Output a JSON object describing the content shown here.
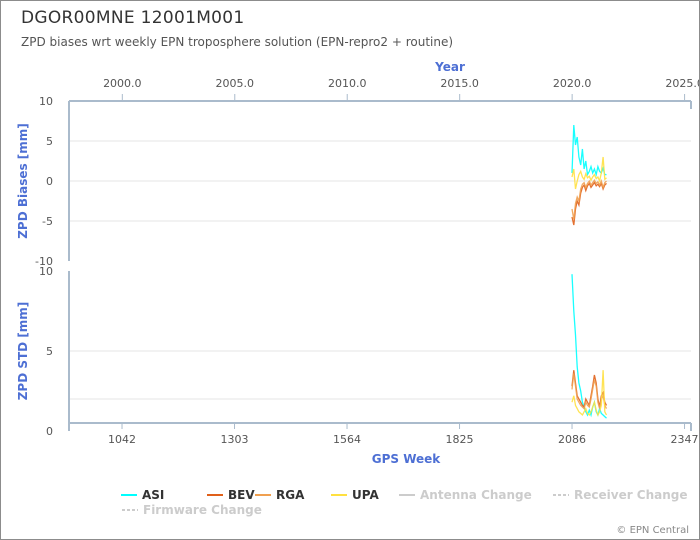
{
  "page": {
    "title": "DGOR00MNE 12001M001",
    "subtitle": "ZPD biases wrt weekly EPN troposphere solution (EPN-repro2 + routine)",
    "credit": "© EPN Central"
  },
  "colors": {
    "ASI": "#00ffff",
    "BEV": "#e0601a",
    "RGA": "#f0a050",
    "UPA": "#ffe040",
    "axis": "#aabbcc",
    "grid": "#e6e6e6",
    "axis_title": "#4d6fd4",
    "tick": "#555555",
    "legend_disabled": "#cccccc"
  },
  "chart_data": [
    {
      "type": "line",
      "xlabel_top": "Year",
      "ylabel": "ZPD Biases [mm]",
      "top_axis_ticks": [
        "2000.0",
        "2005.0",
        "2010.0",
        "2015.0",
        "2020.0",
        "2025.0"
      ],
      "top_axis_values": [
        2000,
        2005,
        2010,
        2015,
        2020,
        2025
      ],
      "ylim": [
        -10,
        10
      ],
      "yticks": [
        "10",
        "5",
        "0",
        "-5",
        "-10"
      ],
      "ytick_values": [
        10,
        5,
        0,
        -5,
        -10
      ],
      "grid": true,
      "series": [
        {
          "name": "ASI",
          "x": [
            2086,
            2090,
            2094,
            2098,
            2102,
            2106,
            2110,
            2114,
            2118,
            2122,
            2126,
            2130,
            2134,
            2138,
            2142,
            2146,
            2150,
            2154,
            2158,
            2162,
            2166
          ],
          "values": [
            1.0,
            7.0,
            4.5,
            5.5,
            3.0,
            2.0,
            4.0,
            1.5,
            2.5,
            0.8,
            1.2,
            1.8,
            1.0,
            1.5,
            0.8,
            1.8,
            1.2,
            1.0,
            1.6,
            0.8,
            0.8
          ]
        },
        {
          "name": "BEV",
          "x": [
            2086,
            2090,
            2094,
            2098,
            2102,
            2106,
            2110,
            2114,
            2118,
            2122,
            2126,
            2130,
            2134,
            2138,
            2142,
            2146,
            2150,
            2154,
            2158,
            2162,
            2166
          ],
          "values": [
            -4.5,
            -5.5,
            -3.5,
            -2.5,
            -3.0,
            -1.5,
            -0.8,
            -0.5,
            -1.2,
            -0.6,
            -0.3,
            -0.8,
            -0.5,
            -0.2,
            -0.6,
            -0.4,
            -0.7,
            -0.3,
            -1.0,
            -0.5,
            -0.3
          ]
        },
        {
          "name": "RGA",
          "x": [
            2086,
            2090,
            2094,
            2098,
            2102,
            2106,
            2110,
            2114,
            2118,
            2122,
            2126,
            2130,
            2134,
            2138,
            2142,
            2146,
            2150,
            2154,
            2158,
            2162,
            2166
          ],
          "values": [
            -3.5,
            -4.8,
            -2.8,
            -2.0,
            -2.5,
            -1.0,
            -0.4,
            -0.2,
            -0.8,
            -0.3,
            0.0,
            -0.5,
            -0.2,
            0.1,
            -0.3,
            -0.1,
            -0.5,
            0.0,
            -0.8,
            -0.2,
            0.0
          ]
        },
        {
          "name": "UPA",
          "x": [
            2086,
            2090,
            2094,
            2098,
            2102,
            2106,
            2110,
            2114,
            2118,
            2122,
            2126,
            2130,
            2134,
            2138,
            2142,
            2146,
            2150,
            2154,
            2158,
            2162,
            2166
          ],
          "values": [
            0.5,
            1.5,
            -1.0,
            0.0,
            0.8,
            1.2,
            0.5,
            0.2,
            0.9,
            0.4,
            0.6,
            0.1,
            0.5,
            0.8,
            0.3,
            0.5,
            0.0,
            1.0,
            3.0,
            0.2,
            0.4
          ]
        }
      ]
    },
    {
      "type": "line",
      "xlabel": "GPS Week",
      "ylabel": "ZPD STD [mm]",
      "xticks": [
        "1042",
        "1303",
        "1564",
        "1825",
        "2086",
        "2347"
      ],
      "xtick_values": [
        1042,
        1303,
        1564,
        1825,
        2086,
        2347
      ],
      "xlim": [
        919,
        2362
      ],
      "ylim": [
        0,
        10
      ],
      "yticks": [
        "10",
        "5",
        "0"
      ],
      "ytick_values": [
        10,
        5,
        0
      ],
      "grid": true,
      "series": [
        {
          "name": "ASI",
          "x": [
            2086,
            2090,
            2094,
            2098,
            2102,
            2106,
            2110,
            2114,
            2118,
            2122,
            2126,
            2130,
            2134,
            2138,
            2142,
            2146,
            2150,
            2154,
            2158,
            2162,
            2166
          ],
          "values": [
            9.8,
            7.5,
            6.0,
            4.0,
            3.0,
            2.5,
            1.8,
            1.5,
            1.2,
            1.0,
            1.3,
            1.0,
            1.5,
            1.8,
            1.2,
            1.0,
            1.4,
            1.1,
            1.0,
            0.9,
            0.8
          ]
        },
        {
          "name": "BEV",
          "x": [
            2086,
            2090,
            2094,
            2098,
            2102,
            2106,
            2110,
            2114,
            2118,
            2122,
            2126,
            2130,
            2134,
            2138,
            2142,
            2146,
            2150,
            2154,
            2158,
            2162,
            2166
          ],
          "values": [
            2.8,
            3.8,
            3.0,
            2.2,
            2.0,
            1.8,
            1.6,
            1.5,
            2.0,
            1.8,
            1.6,
            2.2,
            2.8,
            3.5,
            3.0,
            2.0,
            1.5,
            2.2,
            2.4,
            1.8,
            1.6
          ]
        },
        {
          "name": "RGA",
          "x": [
            2086,
            2090,
            2094,
            2098,
            2102,
            2106,
            2110,
            2114,
            2118,
            2122,
            2126,
            2130,
            2134,
            2138,
            2142,
            2146,
            2150,
            2154,
            2158,
            2162,
            2166
          ],
          "values": [
            2.6,
            3.6,
            2.8,
            2.0,
            1.8,
            1.6,
            1.5,
            1.4,
            1.8,
            1.6,
            1.5,
            2.0,
            2.6,
            3.2,
            2.8,
            1.8,
            1.4,
            2.0,
            2.2,
            1.6,
            1.4
          ]
        },
        {
          "name": "UPA",
          "x": [
            2086,
            2090,
            2094,
            2098,
            2102,
            2106,
            2110,
            2114,
            2118,
            2122,
            2126,
            2130,
            2134,
            2138,
            2142,
            2146,
            2150,
            2154,
            2158,
            2162,
            2166
          ],
          "values": [
            1.8,
            2.2,
            1.6,
            1.4,
            1.2,
            1.1,
            1.0,
            1.2,
            1.4,
            1.1,
            1.0,
            1.2,
            1.5,
            1.8,
            1.3,
            1.0,
            1.2,
            1.6,
            3.8,
            1.2,
            1.0
          ]
        }
      ]
    }
  ],
  "legend": [
    {
      "label": "ASI",
      "color": "#00ffff",
      "dashed": false,
      "enabled": true
    },
    {
      "label": "BEV",
      "color": "#e0601a",
      "dashed": false,
      "enabled": true
    },
    {
      "label": "RGA",
      "color": "#f0a050",
      "dashed": false,
      "enabled": true
    },
    {
      "label": "UPA",
      "color": "#ffe040",
      "dashed": false,
      "enabled": true
    },
    {
      "label": "Antenna Change",
      "color": "#cccccc",
      "dashed": false,
      "enabled": false
    },
    {
      "label": "Receiver Change",
      "color": "#cccccc",
      "dashed": true,
      "enabled": false
    },
    {
      "label": "Firmware Change",
      "color": "#cccccc",
      "dashed": true,
      "enabled": false
    }
  ]
}
